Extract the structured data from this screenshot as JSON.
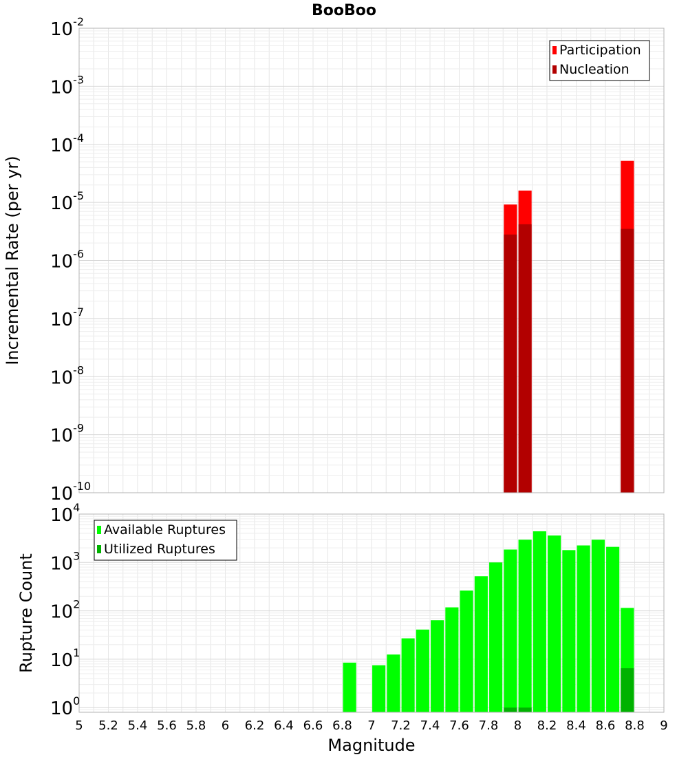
{
  "chart_data": [
    {
      "type": "bar",
      "title": "BooBoo",
      "ylabel": "Incremental Rate (per yr)",
      "xlabel": "",
      "yscale": "log",
      "xlim": [
        5,
        9
      ],
      "ylim": [
        1e-10,
        0.01
      ],
      "y_ticks": [
        {
          "base": "10",
          "exp": "-10"
        },
        {
          "base": "10",
          "exp": "-9"
        },
        {
          "base": "10",
          "exp": "-8"
        },
        {
          "base": "10",
          "exp": "-7"
        },
        {
          "base": "10",
          "exp": "-6"
        },
        {
          "base": "10",
          "exp": "-5"
        },
        {
          "base": "10",
          "exp": "-4"
        },
        {
          "base": "10",
          "exp": "-3"
        },
        {
          "base": "10",
          "exp": "-2"
        }
      ],
      "grid": true,
      "legend_position": "top-right",
      "bar_width": 0.09,
      "series": [
        {
          "name": "Participation",
          "color": "#ff0000",
          "x": [
            7.95,
            8.05,
            8.75
          ],
          "values": [
            9.2e-06,
            1.6e-05,
            5.2e-05
          ]
        },
        {
          "name": "Nucleation",
          "color": "#b20000",
          "x": [
            7.95,
            8.05,
            8.75
          ],
          "values": [
            2.8e-06,
            4.2e-06,
            3.5e-06
          ]
        }
      ]
    },
    {
      "type": "bar",
      "title": "",
      "ylabel": "Rupture Count",
      "xlabel": "Magnitude",
      "yscale": "log",
      "xlim": [
        5,
        9
      ],
      "ylim": [
        0.8,
        10000
      ],
      "y_ticks": [
        {
          "base": "10",
          "exp": "0"
        },
        {
          "base": "10",
          "exp": "1"
        },
        {
          "base": "10",
          "exp": "2"
        },
        {
          "base": "10",
          "exp": "3"
        },
        {
          "base": "10",
          "exp": "4"
        }
      ],
      "x_ticks": [
        "5",
        "5.2",
        "5.4",
        "5.6",
        "5.8",
        "6",
        "6.2",
        "6.4",
        "6.6",
        "6.8",
        "7",
        "7.2",
        "7.4",
        "7.6",
        "7.8",
        "8",
        "8.2",
        "8.4",
        "8.6",
        "8.8",
        "9"
      ],
      "grid": true,
      "legend_position": "top-left",
      "bar_width": 0.09,
      "series": [
        {
          "name": "Available Ruptures",
          "color": "#00ff00",
          "x": [
            6.85,
            7.05,
            7.15,
            7.25,
            7.35,
            7.45,
            7.55,
            7.65,
            7.75,
            7.85,
            7.95,
            8.05,
            8.15,
            8.25,
            8.35,
            8.45,
            8.55,
            8.65,
            8.75
          ],
          "values": [
            8.5,
            7.5,
            12.5,
            27,
            41,
            64,
            118,
            262,
            520,
            1000,
            1850,
            2950,
            4400,
            3600,
            1800,
            2250,
            2950,
            2100,
            115
          ]
        },
        {
          "name": "Utilized Ruptures",
          "color": "#00b200",
          "x": [
            7.95,
            8.05,
            8.75
          ],
          "values": [
            1,
            1,
            6.5
          ]
        }
      ]
    }
  ]
}
